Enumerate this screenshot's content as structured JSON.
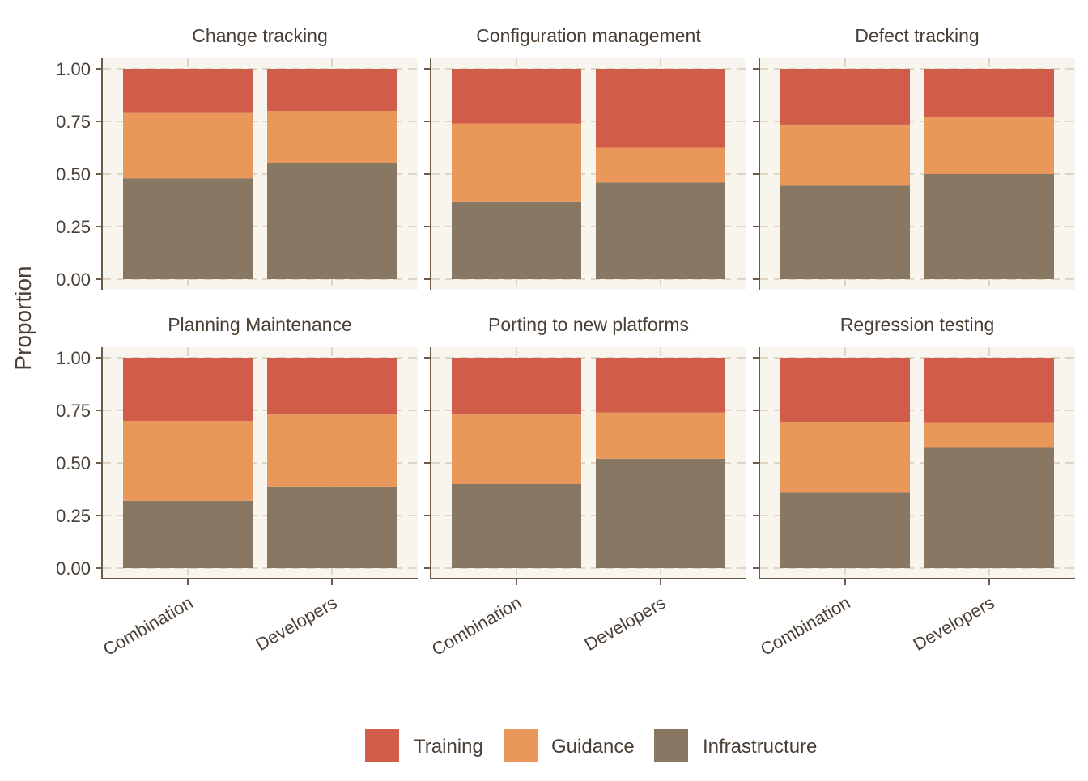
{
  "chart_data": {
    "type": "bar",
    "stacked": true,
    "ylabel": "Proportion",
    "xlabel": "",
    "ylim": [
      0,
      1
    ],
    "yticks": [
      "0.00",
      "0.25",
      "0.50",
      "0.75",
      "1.00"
    ],
    "categories": [
      "Combination",
      "Developers"
    ],
    "legend": {
      "position": "bottom",
      "entries": [
        {
          "name": "Training",
          "color": "#D05D4A"
        },
        {
          "name": "Guidance",
          "color": "#E9975A"
        },
        {
          "name": "Infrastructure",
          "color": "#887863"
        }
      ]
    },
    "panels": [
      {
        "title": "Change tracking",
        "series": [
          {
            "name": "Infrastructure",
            "values": [
              0.48,
              0.55
            ]
          },
          {
            "name": "Guidance",
            "values": [
              0.31,
              0.25
            ]
          },
          {
            "name": "Training",
            "values": [
              0.21,
              0.2
            ]
          }
        ]
      },
      {
        "title": "Configuration management",
        "series": [
          {
            "name": "Infrastructure",
            "values": [
              0.37,
              0.46
            ]
          },
          {
            "name": "Guidance",
            "values": [
              0.37,
              0.165
            ]
          },
          {
            "name": "Training",
            "values": [
              0.26,
              0.375
            ]
          }
        ]
      },
      {
        "title": "Defect tracking",
        "series": [
          {
            "name": "Infrastructure",
            "values": [
              0.445,
              0.5
            ]
          },
          {
            "name": "Guidance",
            "values": [
              0.29,
              0.27
            ]
          },
          {
            "name": "Training",
            "values": [
              0.265,
              0.23
            ]
          }
        ]
      },
      {
        "title": "Planning Maintenance",
        "series": [
          {
            "name": "Infrastructure",
            "values": [
              0.32,
              0.385
            ]
          },
          {
            "name": "Guidance",
            "values": [
              0.38,
              0.345
            ]
          },
          {
            "name": "Training",
            "values": [
              0.3,
              0.27
            ]
          }
        ]
      },
      {
        "title": "Porting to new platforms",
        "series": [
          {
            "name": "Infrastructure",
            "values": [
              0.4,
              0.52
            ]
          },
          {
            "name": "Guidance",
            "values": [
              0.33,
              0.22
            ]
          },
          {
            "name": "Training",
            "values": [
              0.27,
              0.26
            ]
          }
        ]
      },
      {
        "title": "Regression testing",
        "series": [
          {
            "name": "Infrastructure",
            "values": [
              0.36,
              0.575
            ]
          },
          {
            "name": "Guidance",
            "values": [
              0.335,
              0.115
            ]
          },
          {
            "name": "Training",
            "values": [
              0.305,
              0.31
            ]
          }
        ]
      }
    ],
    "colors": {
      "panel_bg": "#F8F5EE",
      "grid": "#DDD5C6",
      "axis": "#6B5B48",
      "text": "#4A3F35"
    }
  }
}
